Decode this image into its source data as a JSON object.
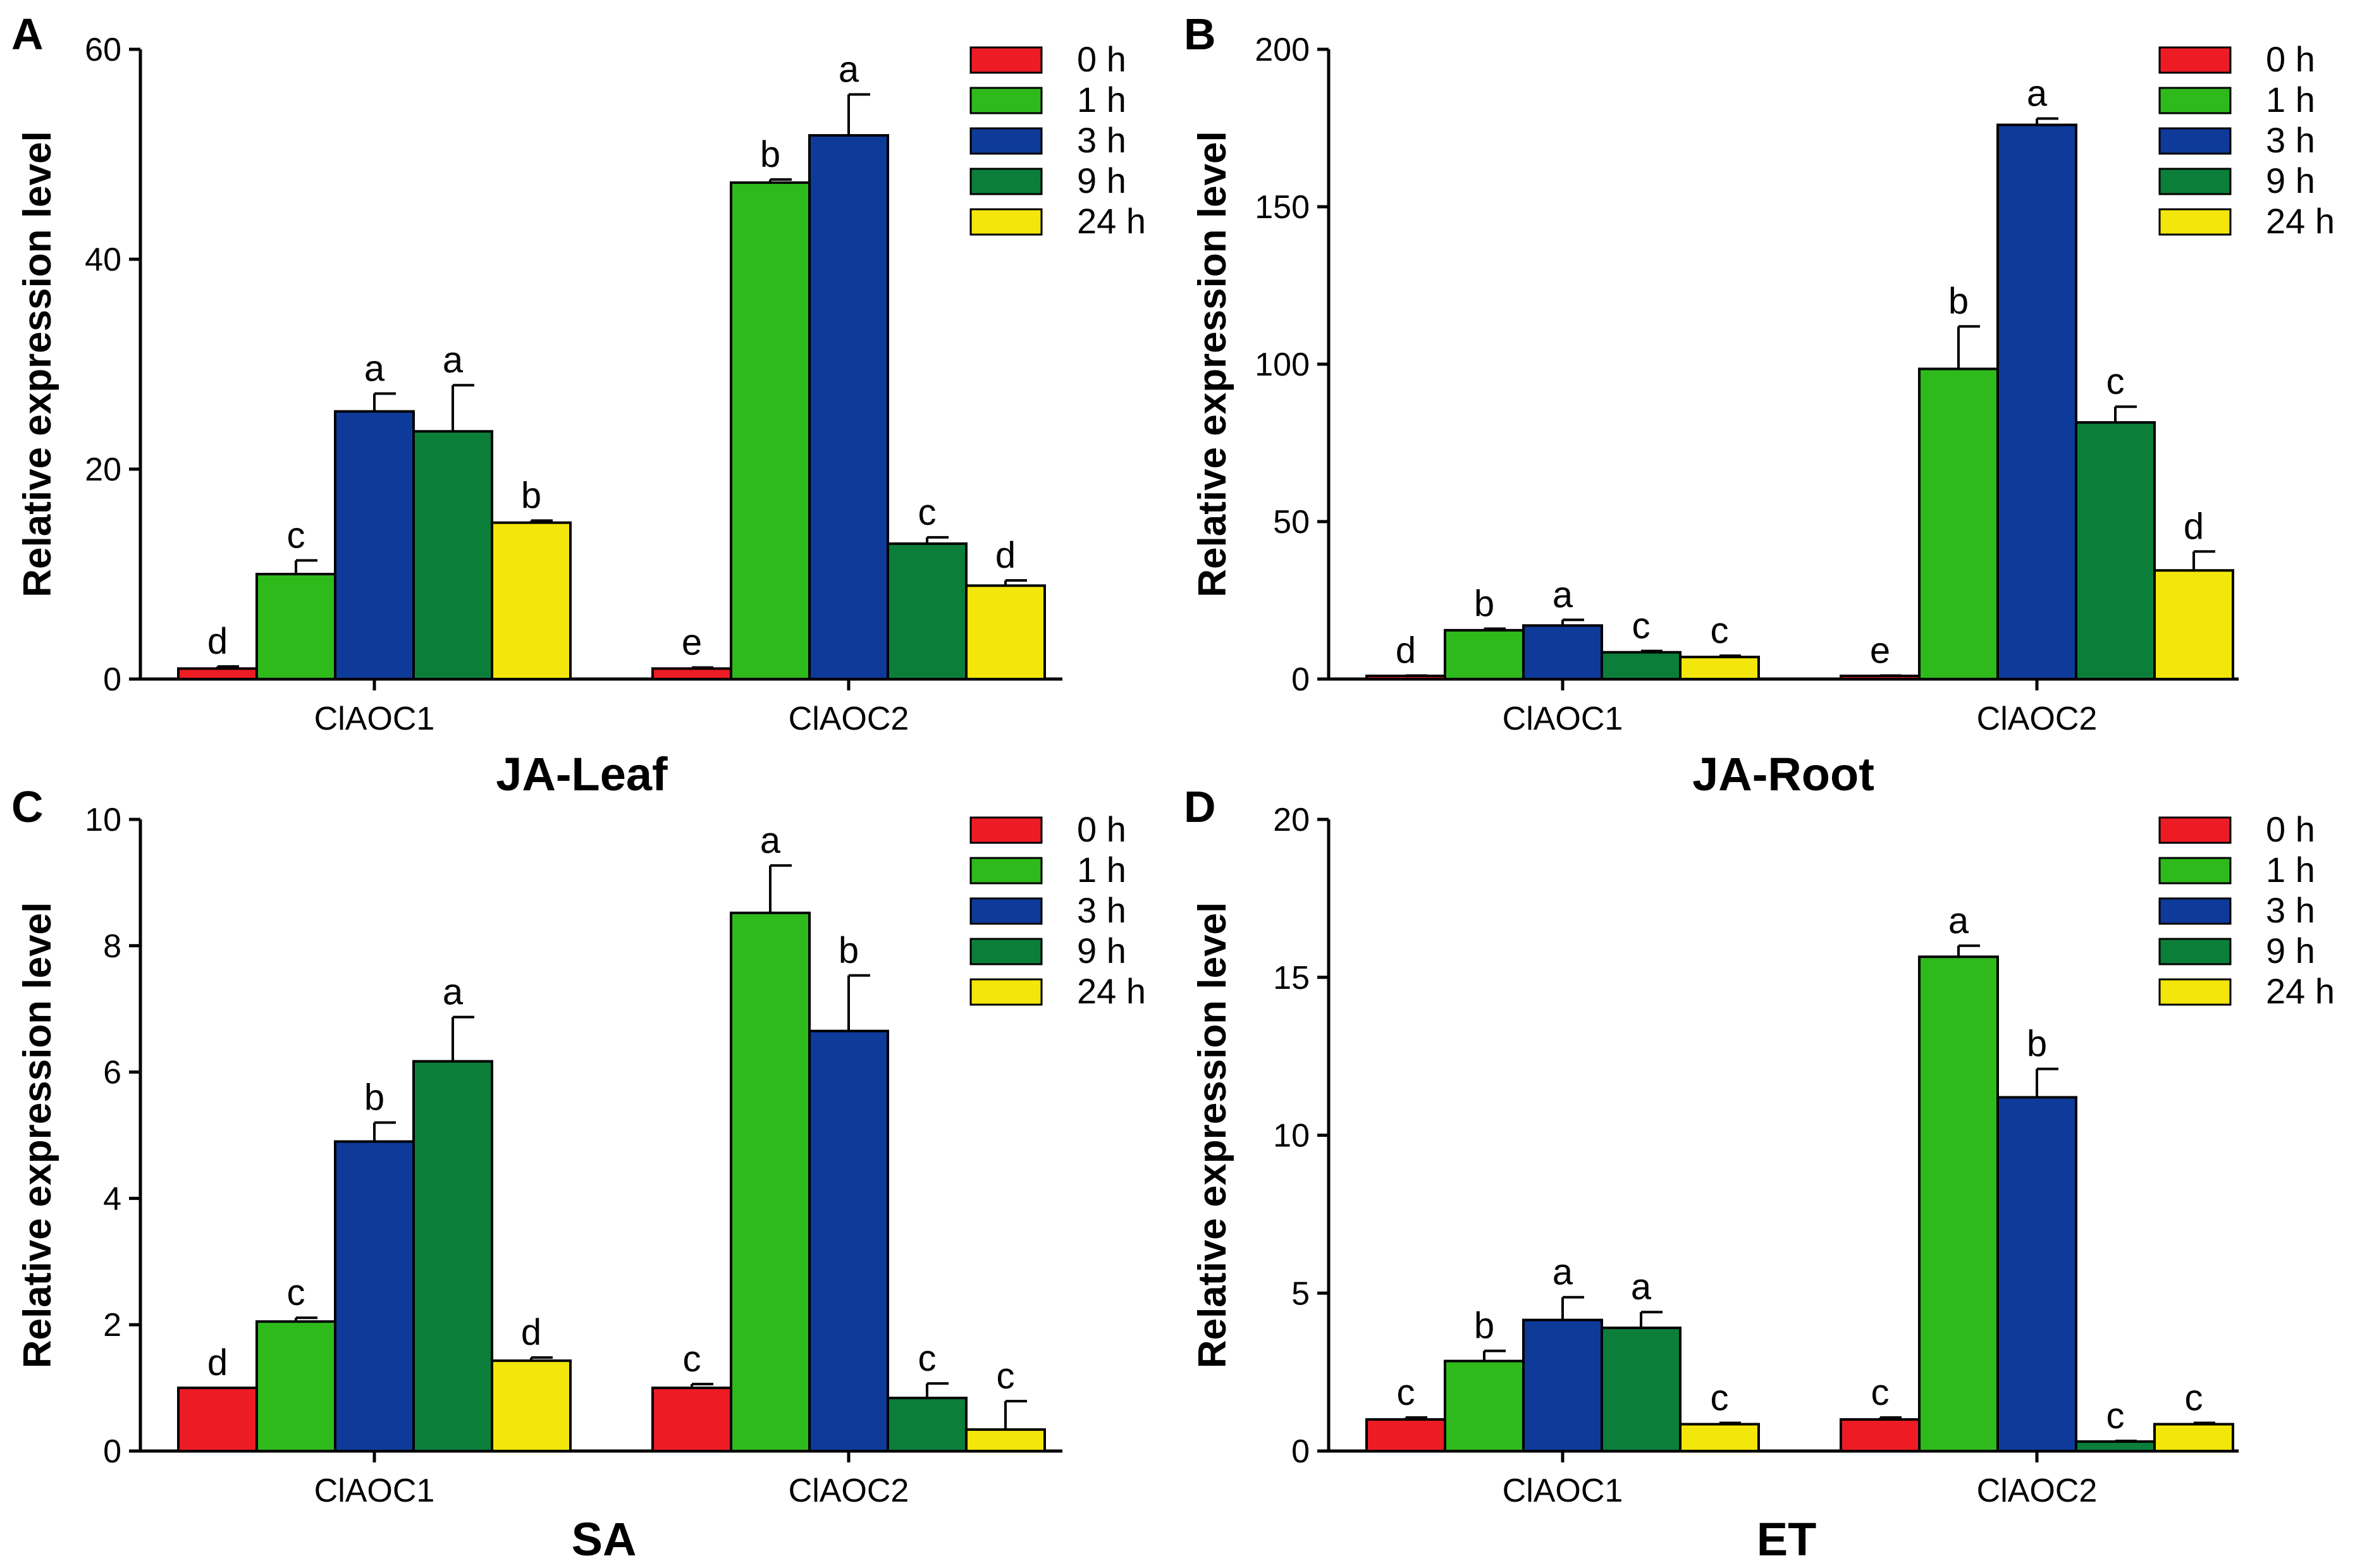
{
  "legend": {
    "labels": [
      "0 h",
      "1 h",
      "3 h",
      "9 h",
      "24 h"
    ],
    "colors": [
      "#ed1c24",
      "#2fba1c",
      "#0e3a9a",
      "#0b7f3a",
      "#f2e60a"
    ]
  },
  "chart_data": [
    {
      "type": "bar",
      "panel": "A",
      "title": "JA-Leaf",
      "ylabel": "Relative expression level",
      "ylim": [
        0,
        60
      ],
      "yticks": [
        0,
        20,
        40,
        60
      ],
      "categories": [
        "ClAOC1",
        "ClAOC2"
      ],
      "series": [
        {
          "name": "0 h",
          "values": [
            1.0,
            1.0
          ],
          "errors": [
            0.2,
            0.1
          ],
          "letters": [
            "d",
            "e"
          ]
        },
        {
          "name": "1 h",
          "values": [
            10.0,
            47.3
          ],
          "errors": [
            1.3,
            0.3
          ],
          "letters": [
            "c",
            "b"
          ]
        },
        {
          "name": "3 h",
          "values": [
            25.5,
            51.8
          ],
          "errors": [
            1.7,
            3.9
          ],
          "letters": [
            "a",
            "a"
          ]
        },
        {
          "name": "9 h",
          "values": [
            23.6,
            12.9
          ],
          "errors": [
            4.4,
            0.6
          ],
          "letters": [
            "a",
            "c"
          ]
        },
        {
          "name": "24 h",
          "values": [
            14.9,
            8.9
          ],
          "errors": [
            0.2,
            0.5
          ],
          "letters": [
            "b",
            "d"
          ]
        }
      ]
    },
    {
      "type": "bar",
      "panel": "B",
      "title": "JA-Root",
      "ylabel": "Relative expression level",
      "ylim": [
        0,
        200
      ],
      "yticks": [
        0,
        50,
        100,
        150,
        200
      ],
      "categories": [
        "ClAOC1",
        "ClAOC2"
      ],
      "series": [
        {
          "name": "0 h",
          "values": [
            1.0,
            1.0
          ],
          "errors": [
            0.1,
            0.1
          ],
          "letters": [
            "d",
            "e"
          ]
        },
        {
          "name": "1 h",
          "values": [
            15.5,
            98.5
          ],
          "errors": [
            0.5,
            13.5
          ],
          "letters": [
            "b",
            "b"
          ]
        },
        {
          "name": "3 h",
          "values": [
            17.0,
            176.0
          ],
          "errors": [
            1.8,
            2.0
          ],
          "letters": [
            "a",
            "a"
          ]
        },
        {
          "name": "9 h",
          "values": [
            8.5,
            81.5
          ],
          "errors": [
            0.4,
            5.0
          ],
          "letters": [
            "c",
            "c"
          ]
        },
        {
          "name": "24 h",
          "values": [
            7.0,
            34.5
          ],
          "errors": [
            0.4,
            6.0
          ],
          "letters": [
            "c",
            "d"
          ]
        }
      ]
    },
    {
      "type": "bar",
      "panel": "C",
      "title": "SA",
      "ylabel": "Relative expression level",
      "ylim": [
        0,
        10
      ],
      "yticks": [
        0,
        2,
        4,
        6,
        8,
        10
      ],
      "categories": [
        "ClAOC1",
        "ClAOC2"
      ],
      "series": [
        {
          "name": "0 h",
          "values": [
            1.0,
            1.0
          ],
          "errors": [
            0.0,
            0.06
          ],
          "letters": [
            "d",
            "c"
          ]
        },
        {
          "name": "1 h",
          "values": [
            2.05,
            8.52
          ],
          "errors": [
            0.06,
            0.75
          ],
          "letters": [
            "c",
            "a"
          ]
        },
        {
          "name": "3 h",
          "values": [
            4.9,
            6.65
          ],
          "errors": [
            0.3,
            0.88
          ],
          "letters": [
            "b",
            "b"
          ]
        },
        {
          "name": "9 h",
          "values": [
            6.17,
            0.84
          ],
          "errors": [
            0.7,
            0.23
          ],
          "letters": [
            "a",
            "c"
          ]
        },
        {
          "name": "24 h",
          "values": [
            1.43,
            0.34
          ],
          "errors": [
            0.05,
            0.45
          ],
          "letters": [
            "d",
            "c"
          ]
        }
      ]
    },
    {
      "type": "bar",
      "panel": "D",
      "title": "ET",
      "ylabel": "Relative expression level",
      "ylim": [
        0,
        20
      ],
      "yticks": [
        0,
        5,
        10,
        15,
        20
      ],
      "categories": [
        "ClAOC1",
        "ClAOC2"
      ],
      "series": [
        {
          "name": "0 h",
          "values": [
            1.0,
            1.0
          ],
          "errors": [
            0.06,
            0.06
          ],
          "letters": [
            "c",
            "c"
          ]
        },
        {
          "name": "1 h",
          "values": [
            2.85,
            15.65
          ],
          "errors": [
            0.32,
            0.35
          ],
          "letters": [
            "b",
            "a"
          ]
        },
        {
          "name": "3 h",
          "values": [
            4.15,
            11.2
          ],
          "errors": [
            0.72,
            0.9
          ],
          "letters": [
            "a",
            "b"
          ]
        },
        {
          "name": "9 h",
          "values": [
            3.9,
            0.3
          ],
          "errors": [
            0.5,
            0.02
          ],
          "letters": [
            "a",
            "c"
          ]
        },
        {
          "name": "24 h",
          "values": [
            0.85,
            0.85
          ],
          "errors": [
            0.04,
            0.04
          ],
          "letters": [
            "c",
            "c"
          ]
        }
      ]
    }
  ]
}
